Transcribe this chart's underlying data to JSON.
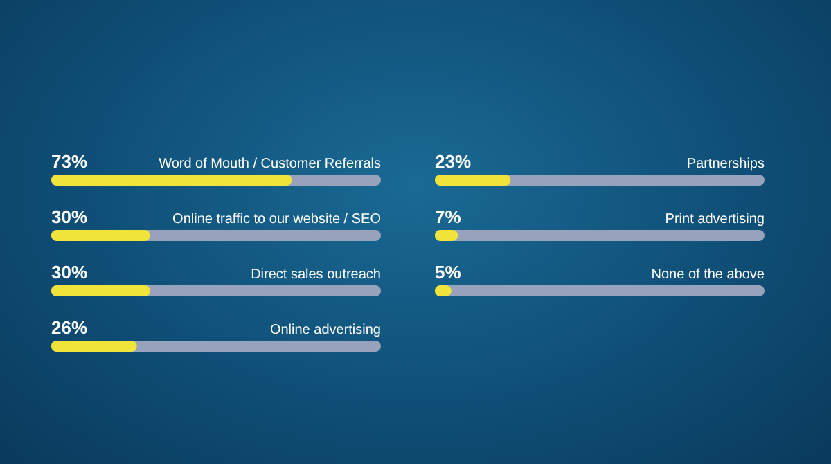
{
  "chart_data": [
    {
      "type": "bar",
      "orientation": "horizontal",
      "categories": [
        "Word of Mouth / Customer Referrals",
        "Online traffic to our website / SEO",
        "Direct sales outreach",
        "Online advertising"
      ],
      "values": [
        73,
        30,
        30,
        26
      ],
      "value_labels": [
        "73%",
        "30%",
        "30%",
        "26%"
      ],
      "color": "#f0e43a",
      "xlim": [
        0,
        100
      ],
      "tick_labels": false
    },
    {
      "type": "bar",
      "orientation": "horizontal",
      "categories": [
        "Partnerships",
        "Print advertising",
        "None of the above"
      ],
      "values": [
        23,
        7,
        5
      ],
      "value_labels": [
        "23%",
        "7%",
        "5%"
      ],
      "color": "#f0e43a",
      "xlim": [
        0,
        100
      ],
      "tick_labels": false
    }
  ]
}
